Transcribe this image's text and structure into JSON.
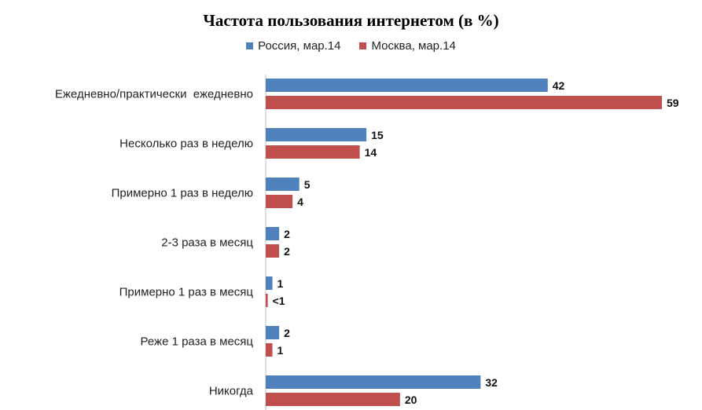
{
  "chart_data": {
    "type": "bar",
    "orientation": "horizontal",
    "title": "Частота пользования интернетом (в %)",
    "categories": [
      "Ежедневно/практически  ежедневно",
      "Несколько раз в неделю",
      "Примерно 1 раз в неделю",
      "2-3 раза в месяц",
      "Примерно 1 раз в месяц",
      "Реже 1 раза в месяц",
      "Никогда"
    ],
    "series": [
      {
        "name": "Россия, мар.14",
        "color": "#4f81bd",
        "values": [
          42,
          15,
          5,
          2,
          1,
          2,
          32
        ],
        "labels": [
          "42",
          "15",
          "5",
          "2",
          "1",
          "2",
          "32"
        ]
      },
      {
        "name": "Москва, мар.14",
        "color": "#c0504d",
        "values": [
          59,
          14,
          4,
          2,
          0.3,
          1,
          20
        ],
        "labels": [
          "59",
          "14",
          "4",
          "2",
          "<1",
          "1",
          "20"
        ]
      }
    ],
    "xlim": [
      0,
      59
    ],
    "legend_position": "top-center",
    "grid": false
  }
}
